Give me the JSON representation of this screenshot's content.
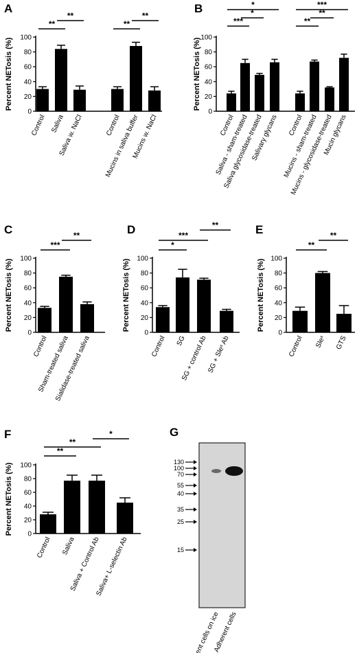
{
  "chart_data": [
    {
      "panel": "A",
      "type": "bar",
      "ylabel": "Percent NETosis (%)",
      "ylim": [
        0,
        100
      ],
      "yticks": [
        0,
        20,
        40,
        60,
        80,
        100
      ],
      "categories": [
        "Control",
        "Saliva",
        "Saliva w. NaCl",
        "Control",
        "Mucins in saliva buffer",
        "Mucins w. NaCl"
      ],
      "values": [
        30,
        84,
        29,
        30,
        88,
        28
      ],
      "errors": [
        3,
        5,
        5,
        3,
        5,
        5
      ],
      "significance": [
        {
          "from": 0,
          "to": 1,
          "label": "**"
        },
        {
          "from": 1,
          "to": 2,
          "label": "**"
        },
        {
          "from": 3,
          "to": 4,
          "label": "**"
        },
        {
          "from": 4,
          "to": 5,
          "label": "**"
        }
      ]
    },
    {
      "panel": "B",
      "type": "bar",
      "ylabel": "Percent NETosis (%)",
      "ylim": [
        0,
        100
      ],
      "yticks": [
        0,
        20,
        40,
        60,
        80,
        100
      ],
      "categories": [
        "Control",
        "Saliva - sham-treated",
        "Saliva glycosidase-treated",
        "Salivary glycans",
        "Control",
        "Mucins - sham-treated",
        "Mucins - glycosidase-treated",
        "Mucin glycans"
      ],
      "values": [
        24,
        65,
        49,
        66,
        24,
        67,
        32,
        72
      ],
      "errors": [
        3,
        5,
        2,
        4,
        3,
        2,
        1,
        5
      ],
      "significance": [
        {
          "from": 0,
          "to": 1,
          "label": "***"
        },
        {
          "from": 1,
          "to": 2,
          "label": "*"
        },
        {
          "from": 0,
          "to": 3,
          "label": "*"
        },
        {
          "from": 4,
          "to": 5,
          "label": "**"
        },
        {
          "from": 5,
          "to": 6,
          "label": "**"
        },
        {
          "from": 4,
          "to": 7,
          "label": "***"
        }
      ]
    },
    {
      "panel": "C",
      "type": "bar",
      "ylabel": "Percent NETosis (%)",
      "ylim": [
        0,
        100
      ],
      "yticks": [
        0,
        20,
        40,
        60,
        80,
        100
      ],
      "categories": [
        "Control",
        "Sham-treated saliva",
        "Sialidase-treated saliva"
      ],
      "values": [
        33,
        75,
        38
      ],
      "errors": [
        2,
        2,
        3
      ],
      "significance": [
        {
          "from": 0,
          "to": 1,
          "label": "***"
        },
        {
          "from": 1,
          "to": 2,
          "label": "**"
        }
      ]
    },
    {
      "panel": "D",
      "type": "bar",
      "ylabel": "Percent NETosis (%)",
      "ylim": [
        0,
        100
      ],
      "yticks": [
        0,
        20,
        40,
        60,
        80,
        100
      ],
      "categories": [
        "Control",
        "SG",
        "SG + control Ab",
        "SG + Sleˣ Ab"
      ],
      "values": [
        34,
        74,
        71,
        29
      ],
      "errors": [
        2,
        11,
        2,
        2
      ],
      "significance": [
        {
          "from": 0,
          "to": 1,
          "label": "*"
        },
        {
          "from": 0,
          "to": 2,
          "label": "***"
        },
        {
          "from": 2,
          "to": 3,
          "label": "**"
        }
      ]
    },
    {
      "panel": "E",
      "type": "bar",
      "ylabel": "Percent NETosis (%)",
      "ylim": [
        0,
        100
      ],
      "yticks": [
        0,
        20,
        40,
        60,
        80,
        100
      ],
      "categories": [
        "Control",
        "Sleˣ",
        "GTS"
      ],
      "values": [
        29,
        80,
        25
      ],
      "errors": [
        5,
        2,
        11
      ],
      "significance": [
        {
          "from": 0,
          "to": 1,
          "label": "**"
        },
        {
          "from": 1,
          "to": 2,
          "label": "**"
        }
      ]
    },
    {
      "panel": "F",
      "type": "bar",
      "ylabel": "Percent NETosis (%)",
      "ylim": [
        0,
        100
      ],
      "yticks": [
        0,
        20,
        40,
        60,
        80,
        100
      ],
      "categories": [
        "Control",
        "Saliva",
        "Saliva + Control Ab",
        "Saliva+ L-selectin Ab"
      ],
      "values": [
        28,
        77,
        77,
        45
      ],
      "errors": [
        3,
        8,
        8,
        7
      ],
      "significance": [
        {
          "from": 0,
          "to": 1,
          "label": "**"
        },
        {
          "from": 0,
          "to": 2,
          "label": "**"
        },
        {
          "from": 2,
          "to": 3,
          "label": "*"
        }
      ]
    }
  ],
  "blot": {
    "panel": "G",
    "markers": [
      "130",
      "100",
      "70",
      "55",
      "40",
      "35",
      "25",
      "15"
    ],
    "lanes": [
      "Non-adherent cells on ice",
      "Adherent cells"
    ]
  }
}
